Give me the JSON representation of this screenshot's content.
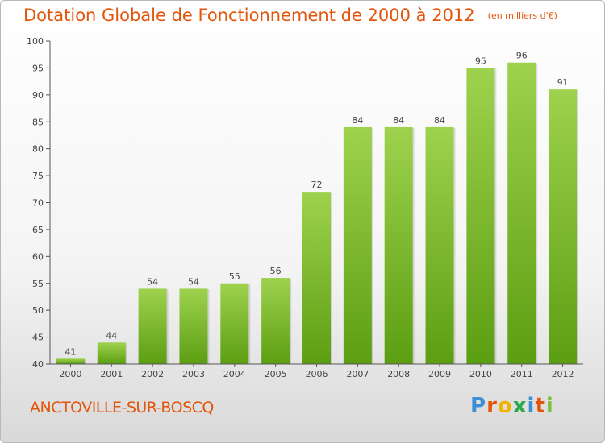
{
  "header": {
    "title": "Dotation Globale de Fonctionnement de 2000 à 2012",
    "unit": "(en milliers d'€)"
  },
  "footer": {
    "commune": "ANCTOVILLE-SUR-BOSCQ",
    "logo_letters": [
      "P",
      "r",
      "o",
      "x",
      "i",
      "t",
      "i"
    ],
    "logo_colors": [
      "#3a8fd6",
      "#e2560c",
      "#f0b400",
      "#2ba84a",
      "#3a8fd6",
      "#e2560c",
      "#7cc242"
    ]
  },
  "chart_data": {
    "type": "bar",
    "title": "Dotation Globale de Fonctionnement de 2000 à 2012",
    "categories": [
      "2000",
      "2001",
      "2002",
      "2003",
      "2004",
      "2005",
      "2006",
      "2007",
      "2008",
      "2009",
      "2010",
      "2011",
      "2012"
    ],
    "values": [
      41,
      44,
      54,
      54,
      55,
      56,
      72,
      84,
      84,
      84,
      95,
      96,
      91
    ],
    "ylim": [
      40,
      100
    ],
    "yticks": [
      40,
      45,
      50,
      55,
      60,
      65,
      70,
      75,
      80,
      85,
      90,
      95,
      100
    ],
    "grid": false,
    "bar_color_top": "#9ed24e",
    "bar_color_bottom": "#5c9e12",
    "title_color": "#e2560c"
  }
}
